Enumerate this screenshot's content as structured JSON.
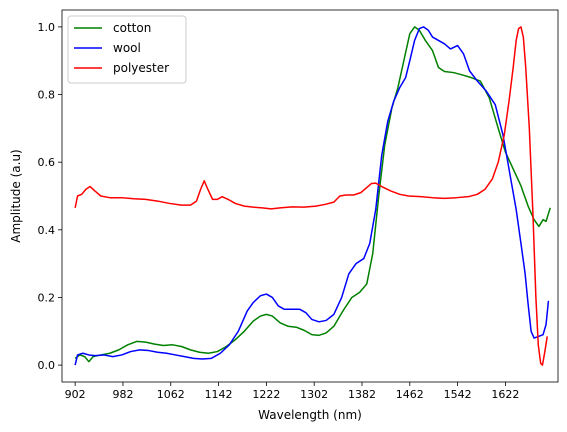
{
  "chart_data": {
    "type": "line",
    "xlabel": "Wavelength (nm)",
    "ylabel": "Amplitude (a.u)",
    "xlim": [
      880,
      1710
    ],
    "ylim": [
      -0.05,
      1.05
    ],
    "x_ticks": [
      902,
      982,
      1062,
      1142,
      1222,
      1302,
      1382,
      1462,
      1542,
      1622
    ],
    "y_ticks": [
      0.0,
      0.2,
      0.4,
      0.6,
      0.8,
      1.0
    ],
    "x_tick_labels": [
      "902",
      "982",
      "1062",
      "1142",
      "1222",
      "1302",
      "1382",
      "1462",
      "1542",
      "1622"
    ],
    "y_tick_labels": [
      "0.0",
      "0.2",
      "0.4",
      "0.6",
      "0.8",
      "1.0"
    ],
    "legend_position": "top-left",
    "grid": false,
    "series": [
      {
        "name": "cotton",
        "color": "#008000",
        "points": [
          [
            902,
            0.02
          ],
          [
            910,
            0.03
          ],
          [
            918,
            0.025
          ],
          [
            925,
            0.01
          ],
          [
            932,
            0.025
          ],
          [
            945,
            0.03
          ],
          [
            960,
            0.035
          ],
          [
            975,
            0.045
          ],
          [
            990,
            0.06
          ],
          [
            1005,
            0.07
          ],
          [
            1020,
            0.068
          ],
          [
            1035,
            0.062
          ],
          [
            1050,
            0.058
          ],
          [
            1065,
            0.06
          ],
          [
            1080,
            0.055
          ],
          [
            1095,
            0.045
          ],
          [
            1110,
            0.038
          ],
          [
            1125,
            0.035
          ],
          [
            1140,
            0.04
          ],
          [
            1155,
            0.055
          ],
          [
            1170,
            0.075
          ],
          [
            1185,
            0.1
          ],
          [
            1200,
            0.13
          ],
          [
            1212,
            0.145
          ],
          [
            1222,
            0.15
          ],
          [
            1232,
            0.145
          ],
          [
            1245,
            0.125
          ],
          [
            1258,
            0.115
          ],
          [
            1272,
            0.112
          ],
          [
            1285,
            0.103
          ],
          [
            1298,
            0.09
          ],
          [
            1310,
            0.088
          ],
          [
            1322,
            0.095
          ],
          [
            1335,
            0.115
          ],
          [
            1350,
            0.16
          ],
          [
            1365,
            0.2
          ],
          [
            1378,
            0.215
          ],
          [
            1390,
            0.24
          ],
          [
            1400,
            0.33
          ],
          [
            1410,
            0.5
          ],
          [
            1420,
            0.65
          ],
          [
            1432,
            0.76
          ],
          [
            1442,
            0.82
          ],
          [
            1452,
            0.9
          ],
          [
            1462,
            0.98
          ],
          [
            1470,
            1.0
          ],
          [
            1478,
            0.99
          ],
          [
            1488,
            0.96
          ],
          [
            1500,
            0.93
          ],
          [
            1510,
            0.88
          ],
          [
            1520,
            0.868
          ],
          [
            1535,
            0.865
          ],
          [
            1550,
            0.858
          ],
          [
            1565,
            0.85
          ],
          [
            1580,
            0.84
          ],
          [
            1595,
            0.79
          ],
          [
            1610,
            0.7
          ],
          [
            1622,
            0.63
          ],
          [
            1635,
            0.58
          ],
          [
            1648,
            0.53
          ],
          [
            1660,
            0.47
          ],
          [
            1670,
            0.43
          ],
          [
            1678,
            0.41
          ],
          [
            1685,
            0.43
          ],
          [
            1690,
            0.425
          ],
          [
            1697,
            0.465
          ]
        ]
      },
      {
        "name": "wool",
        "color": "#0000ff",
        "points": [
          [
            902,
            0.0
          ],
          [
            906,
            0.03
          ],
          [
            915,
            0.035
          ],
          [
            925,
            0.03
          ],
          [
            935,
            0.028
          ],
          [
            950,
            0.03
          ],
          [
            965,
            0.025
          ],
          [
            980,
            0.03
          ],
          [
            995,
            0.04
          ],
          [
            1010,
            0.045
          ],
          [
            1025,
            0.043
          ],
          [
            1040,
            0.038
          ],
          [
            1055,
            0.035
          ],
          [
            1070,
            0.03
          ],
          [
            1085,
            0.025
          ],
          [
            1100,
            0.02
          ],
          [
            1115,
            0.018
          ],
          [
            1130,
            0.02
          ],
          [
            1145,
            0.035
          ],
          [
            1160,
            0.06
          ],
          [
            1175,
            0.1
          ],
          [
            1190,
            0.16
          ],
          [
            1200,
            0.185
          ],
          [
            1212,
            0.205
          ],
          [
            1222,
            0.21
          ],
          [
            1232,
            0.2
          ],
          [
            1242,
            0.175
          ],
          [
            1252,
            0.165
          ],
          [
            1265,
            0.165
          ],
          [
            1278,
            0.165
          ],
          [
            1288,
            0.155
          ],
          [
            1298,
            0.135
          ],
          [
            1310,
            0.128
          ],
          [
            1322,
            0.132
          ],
          [
            1335,
            0.15
          ],
          [
            1348,
            0.2
          ],
          [
            1360,
            0.27
          ],
          [
            1372,
            0.3
          ],
          [
            1385,
            0.315
          ],
          [
            1395,
            0.36
          ],
          [
            1405,
            0.46
          ],
          [
            1415,
            0.62
          ],
          [
            1425,
            0.72
          ],
          [
            1435,
            0.78
          ],
          [
            1445,
            0.82
          ],
          [
            1455,
            0.85
          ],
          [
            1462,
            0.9
          ],
          [
            1470,
            0.96
          ],
          [
            1478,
            0.995
          ],
          [
            1485,
            1.0
          ],
          [
            1493,
            0.99
          ],
          [
            1500,
            0.97
          ],
          [
            1510,
            0.96
          ],
          [
            1520,
            0.95
          ],
          [
            1530,
            0.935
          ],
          [
            1542,
            0.945
          ],
          [
            1552,
            0.92
          ],
          [
            1562,
            0.87
          ],
          [
            1575,
            0.84
          ],
          [
            1590,
            0.81
          ],
          [
            1605,
            0.77
          ],
          [
            1618,
            0.68
          ],
          [
            1630,
            0.56
          ],
          [
            1640,
            0.46
          ],
          [
            1648,
            0.36
          ],
          [
            1655,
            0.27
          ],
          [
            1660,
            0.18
          ],
          [
            1665,
            0.1
          ],
          [
            1670,
            0.08
          ],
          [
            1678,
            0.085
          ],
          [
            1685,
            0.09
          ],
          [
            1690,
            0.12
          ],
          [
            1694,
            0.19
          ]
        ]
      },
      {
        "name": "polyester",
        "color": "#ff0000",
        "points": [
          [
            902,
            0.465
          ],
          [
            906,
            0.5
          ],
          [
            913,
            0.505
          ],
          [
            920,
            0.52
          ],
          [
            927,
            0.528
          ],
          [
            935,
            0.515
          ],
          [
            945,
            0.5
          ],
          [
            960,
            0.495
          ],
          [
            980,
            0.495
          ],
          [
            1000,
            0.492
          ],
          [
            1020,
            0.49
          ],
          [
            1040,
            0.485
          ],
          [
            1060,
            0.478
          ],
          [
            1080,
            0.473
          ],
          [
            1095,
            0.473
          ],
          [
            1105,
            0.485
          ],
          [
            1112,
            0.52
          ],
          [
            1118,
            0.545
          ],
          [
            1124,
            0.52
          ],
          [
            1132,
            0.49
          ],
          [
            1140,
            0.49
          ],
          [
            1148,
            0.498
          ],
          [
            1158,
            0.49
          ],
          [
            1170,
            0.478
          ],
          [
            1185,
            0.47
          ],
          [
            1200,
            0.467
          ],
          [
            1215,
            0.465
          ],
          [
            1230,
            0.462
          ],
          [
            1245,
            0.465
          ],
          [
            1265,
            0.468
          ],
          [
            1285,
            0.467
          ],
          [
            1305,
            0.47
          ],
          [
            1320,
            0.475
          ],
          [
            1335,
            0.482
          ],
          [
            1345,
            0.5
          ],
          [
            1355,
            0.503
          ],
          [
            1368,
            0.503
          ],
          [
            1380,
            0.51
          ],
          [
            1390,
            0.525
          ],
          [
            1398,
            0.537
          ],
          [
            1405,
            0.538
          ],
          [
            1415,
            0.528
          ],
          [
            1430,
            0.515
          ],
          [
            1445,
            0.505
          ],
          [
            1460,
            0.5
          ],
          [
            1480,
            0.498
          ],
          [
            1500,
            0.495
          ],
          [
            1520,
            0.493
          ],
          [
            1540,
            0.495
          ],
          [
            1560,
            0.498
          ],
          [
            1575,
            0.505
          ],
          [
            1588,
            0.52
          ],
          [
            1600,
            0.55
          ],
          [
            1610,
            0.6
          ],
          [
            1620,
            0.68
          ],
          [
            1628,
            0.78
          ],
          [
            1635,
            0.88
          ],
          [
            1640,
            0.96
          ],
          [
            1644,
            0.995
          ],
          [
            1648,
            1.0
          ],
          [
            1652,
            0.97
          ],
          [
            1656,
            0.88
          ],
          [
            1662,
            0.7
          ],
          [
            1668,
            0.45
          ],
          [
            1673,
            0.2
          ],
          [
            1677,
            0.06
          ],
          [
            1681,
            0.005
          ],
          [
            1684,
            0.0
          ],
          [
            1688,
            0.04
          ],
          [
            1692,
            0.085
          ]
        ]
      }
    ]
  }
}
